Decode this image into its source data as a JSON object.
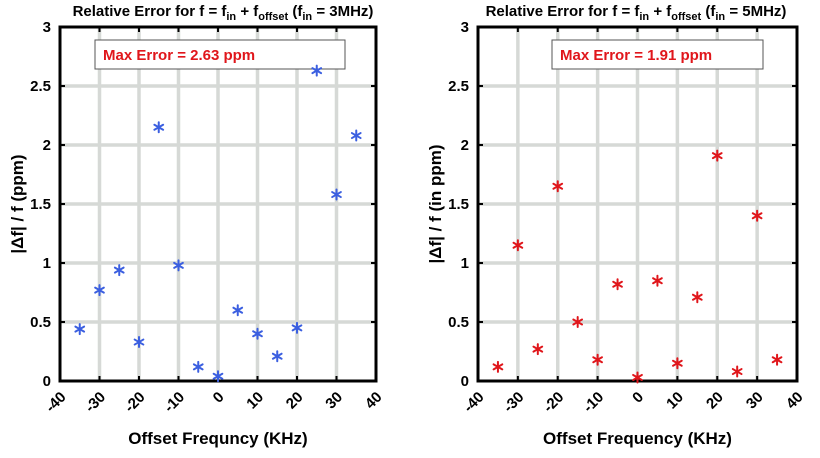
{
  "chart_data": [
    {
      "type": "scatter",
      "title": {
        "prefix": "Relative Error for f = f",
        "sub1": "in",
        "mid1": " + f",
        "sub2": "offset",
        "mid2": " (f",
        "sub3": "in",
        "suffix": " = 3MHz)"
      },
      "xlabel": "Offset Frequncy (KHz)",
      "ylabel": "|Δf| / f (ppm)",
      "xlim": [
        -40,
        40
      ],
      "ylim": [
        0,
        3
      ],
      "xticks": [
        -40,
        -30,
        -20,
        -10,
        0,
        10,
        20,
        30,
        40
      ],
      "yticks": [
        0,
        0.5,
        1,
        1.5,
        2,
        2.5,
        3
      ],
      "xtick_labels": [
        "-40",
        "-30",
        "-20",
        "-10",
        "0",
        "10",
        "20",
        "30",
        "40"
      ],
      "ytick_labels": [
        "0",
        "0.5",
        "1",
        "1.5",
        "2",
        "2.5",
        "3"
      ],
      "grid": true,
      "marker": "*",
      "color": "#3b5fe0",
      "annotation": "Max Error = 2.63 ppm",
      "annotation_color": "#e0161b",
      "series": [
        {
          "x": [
            -35,
            -30,
            -25,
            -20,
            -15,
            -10,
            -5,
            0,
            5,
            10,
            15,
            20,
            25,
            30,
            35
          ],
          "y": [
            0.44,
            0.77,
            0.94,
            0.33,
            2.15,
            0.98,
            0.12,
            0.04,
            0.6,
            0.4,
            0.21,
            0.45,
            2.63,
            1.58,
            2.08
          ]
        }
      ]
    },
    {
      "type": "scatter",
      "title": {
        "prefix": "Relative Error for f = f",
        "sub1": "in",
        "mid1": " + f",
        "sub2": "offset",
        "mid2": " (f",
        "sub3": "in",
        "suffix": " = 5MHz)"
      },
      "xlabel": "Offset Frequency (KHz)",
      "ylabel": "|Δf| / f (in ppm)",
      "xlim": [
        -40,
        40
      ],
      "ylim": [
        0,
        3
      ],
      "xticks": [
        -40,
        -30,
        -20,
        -10,
        0,
        10,
        20,
        30,
        40
      ],
      "yticks": [
        0,
        0.5,
        1,
        1.5,
        2,
        2.5,
        3
      ],
      "xtick_labels": [
        "-40",
        "-30",
        "-20",
        "-10",
        "0",
        "10",
        "20",
        "30",
        "40"
      ],
      "ytick_labels": [
        "0",
        "0.5",
        "1",
        "1.5",
        "2",
        "2.5",
        "3"
      ],
      "grid": true,
      "marker": "*",
      "color": "#e0161b",
      "annotation": "Max Error = 1.91 ppm",
      "annotation_color": "#e0161b",
      "series": [
        {
          "x": [
            -35,
            -30,
            -25,
            -20,
            -15,
            -10,
            -5,
            0,
            5,
            10,
            15,
            20,
            25,
            30,
            35
          ],
          "y": [
            0.12,
            1.15,
            0.27,
            1.65,
            0.5,
            0.18,
            0.82,
            0.03,
            0.85,
            0.15,
            0.71,
            1.91,
            0.08,
            1.4,
            0.18
          ]
        }
      ]
    }
  ]
}
